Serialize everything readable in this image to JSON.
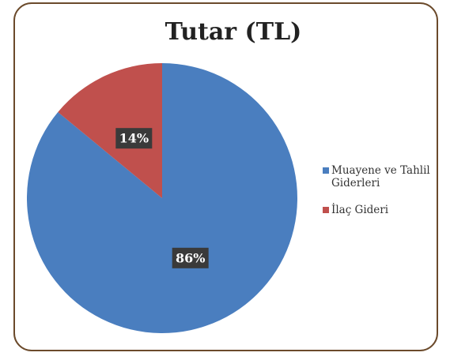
{
  "chart_data": {
    "type": "pie",
    "title": "Tutar (TL)",
    "categories": [
      "Muayene ve Tahlil Giderleri",
      "İlaç Gideri"
    ],
    "values": [
      86,
      14
    ],
    "value_labels": [
      "86%",
      "14%"
    ],
    "colors": [
      "#4a7ebf",
      "#c0504d"
    ],
    "legend": "right"
  }
}
